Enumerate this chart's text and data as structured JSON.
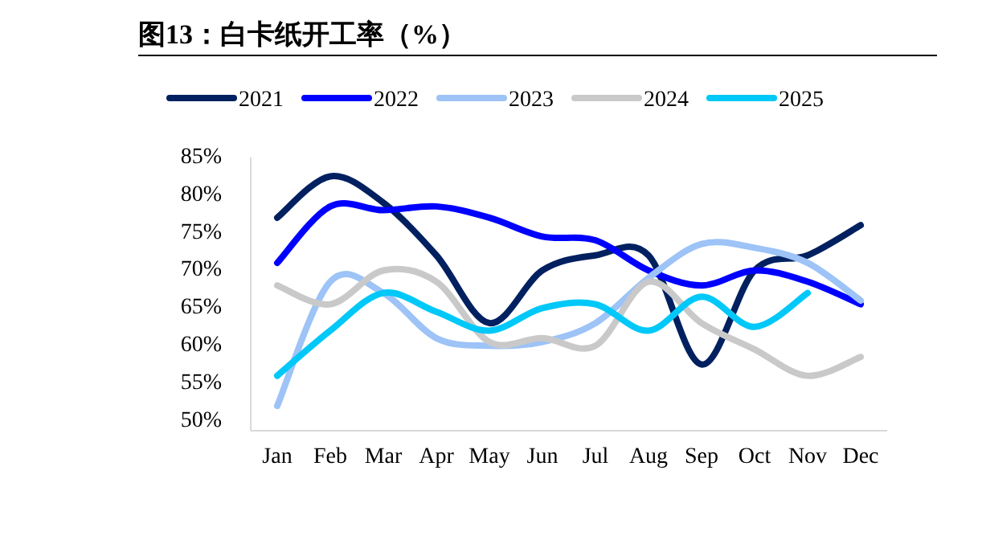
{
  "chart_data": {
    "type": "line",
    "title": "图13：白卡纸开工率（%）",
    "categories": [
      "Jan",
      "Feb",
      "Mar",
      "Apr",
      "May",
      "Jun",
      "Jul",
      "Aug",
      "Sep",
      "Oct",
      "Nov",
      "Dec"
    ],
    "series": [
      {
        "name": "2021",
        "color": "#002060",
        "values": [
          77,
          82.5,
          79,
          72,
          63,
          70,
          72,
          72,
          57.5,
          70,
          72,
          76
        ]
      },
      {
        "name": "2022",
        "color": "#0000ff",
        "values": [
          71,
          78.5,
          78,
          78.5,
          77,
          74.5,
          74,
          70,
          68,
          70,
          68.5,
          65.5
        ]
      },
      {
        "name": "2023",
        "color": "#9dc3f7",
        "values": [
          52,
          68.5,
          67,
          61,
          60,
          60.5,
          63,
          69,
          73.5,
          73,
          71,
          66
        ]
      },
      {
        "name": "2024",
        "color": "#c9c9c9",
        "values": [
          68,
          65.5,
          70,
          68.5,
          60.5,
          61,
          60,
          68.5,
          63,
          59.5,
          56,
          58.5
        ]
      },
      {
        "name": "2025",
        "color": "#00c8f8",
        "values": [
          56,
          62,
          67,
          64.5,
          62,
          65,
          65.5,
          62,
          66.5,
          62.5,
          67,
          null
        ]
      }
    ],
    "ylim": [
      48.7,
      85
    ],
    "yticks": [
      {
        "value": 50,
        "label": "50%"
      },
      {
        "value": 55,
        "label": "55%"
      },
      {
        "value": 60,
        "label": "60%"
      },
      {
        "value": 65,
        "label": "65%"
      },
      {
        "value": 70,
        "label": "70%"
      },
      {
        "value": 75,
        "label": "75%"
      },
      {
        "value": 80,
        "label": "80%"
      },
      {
        "value": 85,
        "label": "85%"
      }
    ],
    "grid": false,
    "legend": "top",
    "marker": "none",
    "line_style": "solid"
  }
}
